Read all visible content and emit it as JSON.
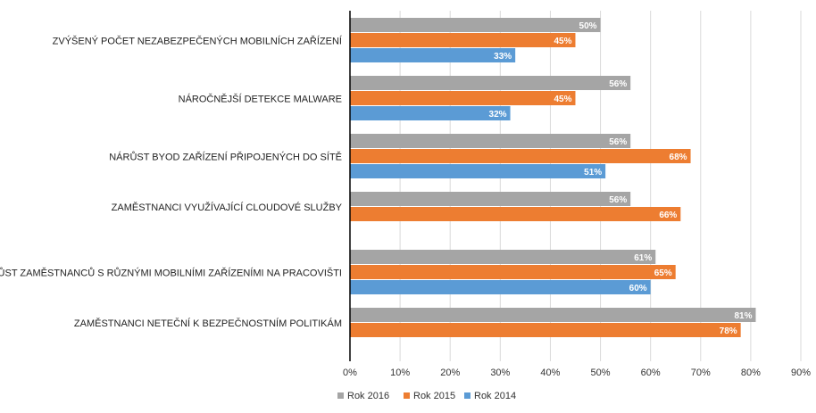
{
  "chart_data": {
    "type": "bar",
    "orientation": "horizontal",
    "categories": [
      "ZVÝŠENÝ POČET NEZABEZPEČENÝCH MOBILNÍCH ZAŘÍZENÍ",
      "NÁROČNĚJŠÍ DETEKCE MALWARE",
      "NÁRŮST BYOD ZAŘÍZENÍ PŘIPOJENÝCH DO SÍTĚ",
      "ZAMĚSTNANCI VYUŽÍVAJÍCÍ CLOUDOVÉ SLUŽBY",
      "NÁRŮST ZAMĚSTNANCŮ S RŮZNÝMI MOBILNÍMI ZAŘÍZENÍMI NA PRACOVIŠTI",
      "ZAMĚSTNANCI NETEČNÍ K BEZPEČNOSTNÍM POLITIKÁM"
    ],
    "series": [
      {
        "name": "Rok 2016",
        "color": "#a5a5a5",
        "values": [
          50,
          56,
          56,
          56,
          61,
          81
        ],
        "labels": [
          "50%",
          "56%",
          "56%",
          "56%",
          "61%",
          "81%"
        ]
      },
      {
        "name": "Rok 2015",
        "color": "#ed7d31",
        "values": [
          45,
          45,
          68,
          66,
          65,
          78
        ],
        "labels": [
          "45%",
          "45%",
          "68%",
          "66%",
          "65%",
          "78%"
        ]
      },
      {
        "name": "Rok 2014",
        "color": "#5b9bd5",
        "values": [
          33,
          32,
          51,
          null,
          60,
          null
        ],
        "labels": [
          "33%",
          "32%",
          "51%",
          "",
          "60%",
          ""
        ]
      }
    ],
    "xlim": [
      0,
      90
    ],
    "xticks": [
      0,
      10,
      20,
      30,
      40,
      50,
      60,
      70,
      80,
      90
    ],
    "xtick_labels": [
      "0%",
      "10%",
      "20%",
      "30%",
      "40%",
      "50%",
      "60%",
      "70%",
      "80%",
      "90%"
    ],
    "grid": true,
    "legend_position": "bottom",
    "legend": [
      "Rok 2016",
      "Rok 2015",
      "Rok 2014"
    ],
    "title": "",
    "xlabel": "",
    "ylabel": ""
  }
}
